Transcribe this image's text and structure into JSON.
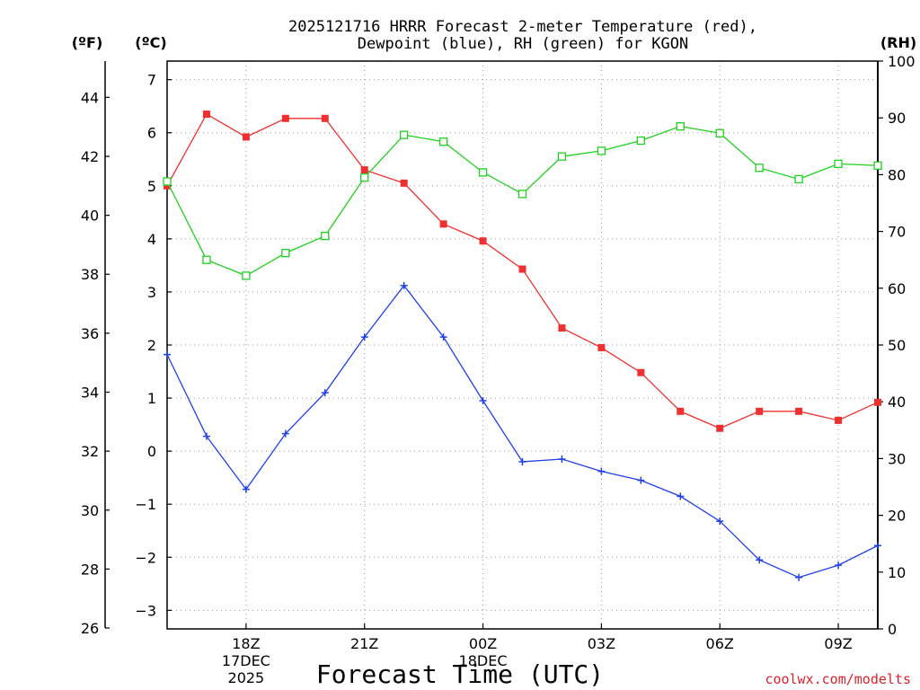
{
  "chart_data": {
    "type": "line",
    "title": "2025121716 HRRR Forecast 2-meter Temperature (red), Dewpoint (blue), RH (green) for KGON",
    "title_lines": [
      "2025121716 HRRR Forecast 2-meter Temperature (red),",
      "Dewpoint (blue), RH (green) for KGON"
    ],
    "xlabel": "Forecast Time (UTC)",
    "credit": "coolwx.com/modelts",
    "units": {
      "f": "(ºF)",
      "c": "(ºC)",
      "rh": "(RH)"
    },
    "x_hours": [
      16,
      17,
      18,
      19,
      20,
      21,
      22,
      23,
      24,
      25,
      26,
      27,
      28,
      29,
      30,
      31,
      32,
      33,
      34
    ],
    "x_ticks": [
      {
        "hour": 18,
        "label": "18Z",
        "sub": [
          "17DEC",
          "2025"
        ]
      },
      {
        "hour": 21,
        "label": "21Z",
        "sub": []
      },
      {
        "hour": 24,
        "label": "00Z",
        "sub": [
          "18DEC"
        ]
      },
      {
        "hour": 27,
        "label": "03Z",
        "sub": []
      },
      {
        "hour": 30,
        "label": "06Z",
        "sub": []
      },
      {
        "hour": 33,
        "label": "09Z",
        "sub": []
      }
    ],
    "xlim": [
      16,
      34
    ],
    "celsius_axis": {
      "ylim": [
        -3.35,
        7.35
      ],
      "ticks": [
        -3,
        -2,
        -1,
        0,
        1,
        2,
        3,
        4,
        5,
        6,
        7
      ],
      "labels": [
        "−3",
        "−2",
        "−1",
        "0",
        "1",
        "2",
        "3",
        "4",
        "5",
        "6",
        "7"
      ]
    },
    "fahrenheit_axis": {
      "ticks": [
        26,
        28,
        30,
        32,
        34,
        36,
        38,
        40,
        42,
        44
      ],
      "labels": [
        "26",
        "28",
        "30",
        "32",
        "34",
        "36",
        "38",
        "40",
        "42",
        "44"
      ]
    },
    "rh_axis": {
      "ylim": [
        0,
        100
      ],
      "ticks": [
        0,
        10,
        20,
        30,
        40,
        50,
        60,
        70,
        80,
        90,
        100
      ],
      "labels": [
        "0",
        "10",
        "20",
        "30",
        "40",
        "50",
        "60",
        "70",
        "80",
        "90",
        "100"
      ]
    },
    "series": [
      {
        "name": "2-meter Temperature",
        "axis": "celsius",
        "color": "#f03030",
        "marker": "filled-square",
        "values": [
          5.0,
          6.35,
          5.92,
          6.27,
          6.27,
          5.3,
          5.05,
          4.28,
          3.96,
          3.43,
          2.32,
          1.95,
          1.48,
          0.75,
          0.43,
          0.75,
          0.75,
          0.58,
          0.92
        ]
      },
      {
        "name": "Dewpoint",
        "axis": "celsius",
        "color": "#2040e8",
        "marker": "plus",
        "values": [
          1.82,
          0.28,
          -0.72,
          0.33,
          1.1,
          2.15,
          3.12,
          2.15,
          0.95,
          -0.2,
          -0.15,
          -0.38,
          -0.55,
          -0.85,
          -1.32,
          -2.05,
          -2.38,
          -2.15,
          -1.78
        ]
      },
      {
        "name": "RH",
        "axis": "rh",
        "color": "#20d020",
        "marker": "open-square",
        "values": [
          78.8,
          65.0,
          62.2,
          66.2,
          69.2,
          79.5,
          87.0,
          85.8,
          80.4,
          76.6,
          83.2,
          84.2,
          86.0,
          88.5,
          87.3,
          81.2,
          79.2,
          81.9,
          81.6
        ]
      }
    ]
  }
}
